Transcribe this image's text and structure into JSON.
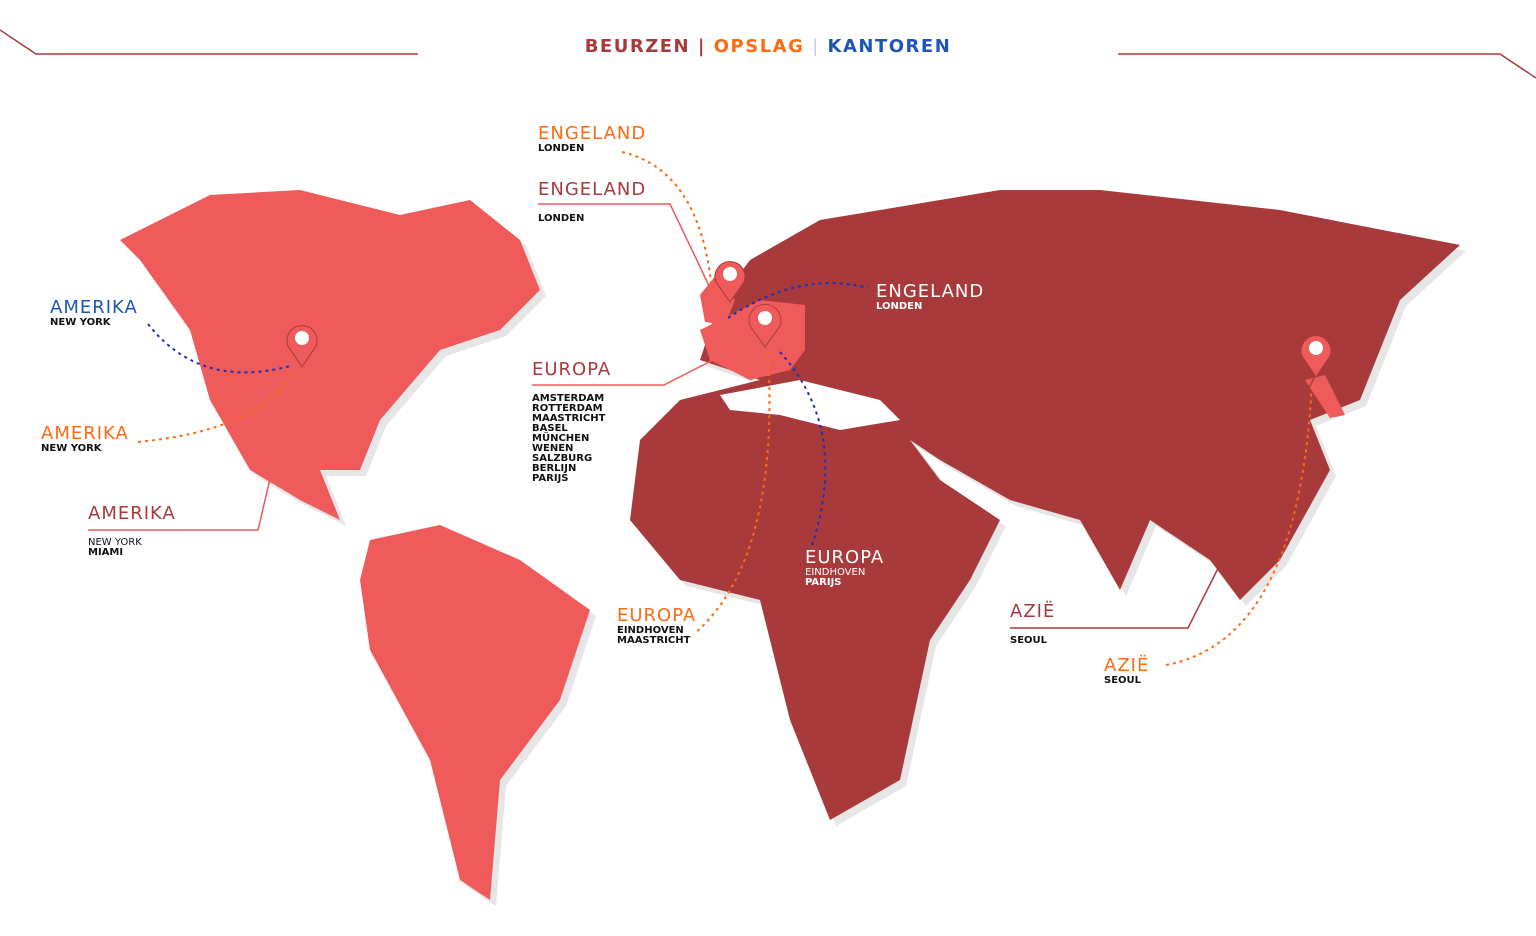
{
  "header": {
    "beurzen": "BEURZEN",
    "sep1": "|",
    "opslag": "OPSLAG",
    "sep2": "|",
    "kantoren": "KANTOREN"
  },
  "colors": {
    "beurzen": "#a83a3c",
    "opslag": "#ff6a13",
    "kantoren": "#1e56b8",
    "americas": "#ef5a5a",
    "eurasia_africa": "#a83a3c",
    "highlight": "#ef5a5a"
  },
  "labels": {
    "engeland_opslag": {
      "title": "ENGELAND",
      "sub": "LONDEN"
    },
    "engeland_beurzen": {
      "title": "ENGELAND",
      "sub": "LONDEN"
    },
    "engeland_kantoren": {
      "title": "ENGELAND",
      "sub": "LONDEN"
    },
    "amerika_kantoren": {
      "title": "AMERIKA",
      "sub": "NEW YORK"
    },
    "amerika_opslag": {
      "title": "AMERIKA",
      "sub": "NEW YORK"
    },
    "amerika_beurzen": {
      "title": "AMERIKA",
      "sub1": "NEW YORK",
      "sub2": "MIAMI"
    },
    "europa_beurzen": {
      "title": "EUROPA",
      "cities": [
        "AMSTERDAM",
        "ROTTERDAM",
        "MAASTRICHT",
        "BASEL",
        "MÜNCHEN",
        "WENEN",
        "SALZBURG",
        "BERLIJN",
        "PARIJS"
      ]
    },
    "europa_kantoren": {
      "title": "EUROPA",
      "sub1": "EINDHOVEN",
      "sub2": "PARIJS"
    },
    "europa_opslag": {
      "title": "EUROPA",
      "sub1": "EINDHOVEN",
      "sub2": "MAASTRICHT"
    },
    "azie_beurzen": {
      "title": "AZIË",
      "sub": "SEOUL"
    },
    "azie_opslag": {
      "title": "AZIË",
      "sub": "SEOUL"
    }
  },
  "pins": [
    "map-pin-icon",
    "map-pin-icon",
    "map-pin-icon",
    "map-pin-icon"
  ]
}
